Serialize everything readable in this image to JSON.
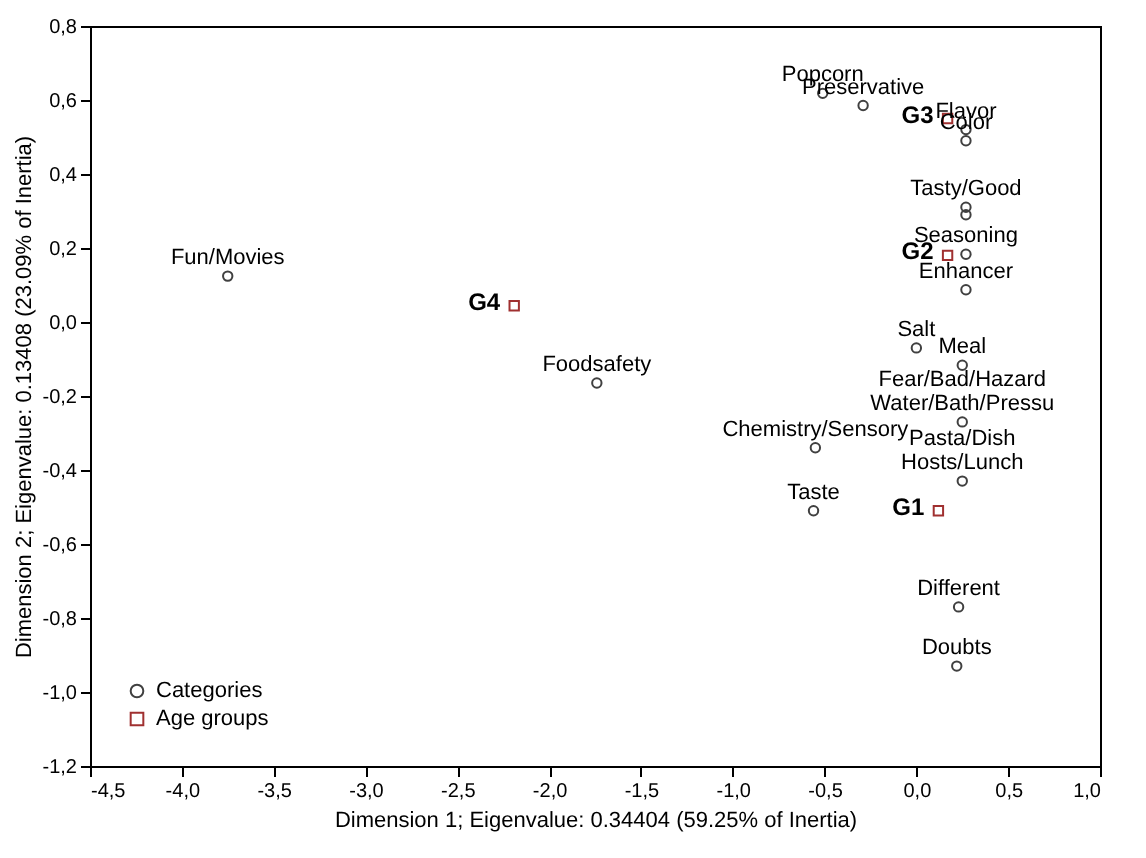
{
  "chart_data": {
    "type": "scatter",
    "xlabel": "Dimension 1; Eigenvalue: 0.34404 (59.25% of Inertia)",
    "ylabel": "Dimension 2; Eigenvalue: 0.13408 (23.09% of Inertia)",
    "xlim": [
      -4.5,
      1.0
    ],
    "ylim": [
      -1.2,
      0.8
    ],
    "xticks": [
      {
        "value": -4.5,
        "label": "-4,5"
      },
      {
        "value": -4.0,
        "label": "-4,0"
      },
      {
        "value": -3.5,
        "label": "-3,5"
      },
      {
        "value": -3.0,
        "label": "-3,0"
      },
      {
        "value": -2.5,
        "label": "-2,5"
      },
      {
        "value": -2.0,
        "label": "-2,0"
      },
      {
        "value": -1.5,
        "label": "-1,5"
      },
      {
        "value": -1.0,
        "label": "-1,0"
      },
      {
        "value": -0.5,
        "label": "-0,5"
      },
      {
        "value": 0.0,
        "label": "0,0"
      },
      {
        "value": 0.5,
        "label": "0,5"
      },
      {
        "value": 1.0,
        "label": "1,0"
      }
    ],
    "yticks": [
      {
        "value": -1.2,
        "label": "-1,2"
      },
      {
        "value": -1.0,
        "label": "-1,0"
      },
      {
        "value": -0.8,
        "label": "-0,8"
      },
      {
        "value": -0.6,
        "label": "-0,6"
      },
      {
        "value": -0.4,
        "label": "-0,4"
      },
      {
        "value": -0.2,
        "label": "-0,2"
      },
      {
        "value": 0.0,
        "label": "0,0"
      },
      {
        "value": 0.2,
        "label": "0,2"
      },
      {
        "value": 0.4,
        "label": "0,4"
      },
      {
        "value": 0.6,
        "label": "0,6"
      },
      {
        "value": 0.8,
        "label": "0,8"
      }
    ],
    "series": [
      {
        "name": "Categories",
        "color": "#404040",
        "marker": "circle",
        "x": [
          -3.75,
          -1.74,
          -0.55,
          -0.56,
          0.23,
          0.22,
          0.25,
          0.25,
          0.25,
          0.0,
          0.27,
          0.27,
          -0.51,
          -0.29,
          0.27,
          0.27,
          0.27,
          0.27
        ],
        "values": [
          0.124,
          -0.165,
          -0.34,
          -0.51,
          -0.77,
          -0.93,
          -0.27,
          -0.117,
          -0.43,
          -0.07,
          0.087,
          0.183,
          0.618,
          0.585,
          0.52,
          0.49,
          0.31,
          0.29
        ]
      },
      {
        "name": "Age groups",
        "color": "#a03030",
        "marker": "square",
        "x": [
          0.12,
          0.17,
          0.17,
          -2.19
        ],
        "values": [
          -0.51,
          0.18,
          0.55,
          0.044
        ]
      }
    ],
    "annotations": [
      {
        "text": "Fun/Movies",
        "x": -3.75,
        "y": 0.124
      },
      {
        "text": "Foodsafety",
        "x": -1.74,
        "y": -0.165
      },
      {
        "text": "Chemistry/Sensory",
        "x": -0.55,
        "y": -0.34
      },
      {
        "text": "Taste",
        "x": -0.56,
        "y": -0.51
      },
      {
        "text": "Different",
        "x": 0.23,
        "y": -0.77
      },
      {
        "text": "Doubts",
        "x": 0.22,
        "y": -0.93
      },
      {
        "text": "Water/Bath/Pressu",
        "x": 0.25,
        "y": -0.27
      },
      {
        "text": "Fear/Bad/Hazard",
        "x": 0.25,
        "y": -0.27
      },
      {
        "text": "Meal",
        "x": 0.25,
        "y": -0.117
      },
      {
        "text": "Hosts/Lunch",
        "x": 0.25,
        "y": -0.43
      },
      {
        "text": "Pasta/Dish",
        "x": 0.25,
        "y": -0.43
      },
      {
        "text": "Salt",
        "x": 0.0,
        "y": -0.07
      },
      {
        "text": "Enhancer",
        "x": 0.27,
        "y": 0.087
      },
      {
        "text": "Seasoning",
        "x": 0.27,
        "y": 0.183
      },
      {
        "text": "Popcorn",
        "x": -0.51,
        "y": 0.618
      },
      {
        "text": "Preservative",
        "x": -0.29,
        "y": 0.585
      },
      {
        "text": "Flavor",
        "x": 0.27,
        "y": 0.52
      },
      {
        "text": "Color",
        "x": 0.27,
        "y": 0.49
      },
      {
        "text": "Tasty/Good",
        "x": 0.27,
        "y": 0.31
      },
      {
        "text": "G1",
        "x": 0.12,
        "y": -0.51
      },
      {
        "text": "G2",
        "x": 0.17,
        "y": 0.18
      },
      {
        "text": "G3",
        "x": 0.17,
        "y": 0.55
      },
      {
        "text": "G4",
        "x": -2.19,
        "y": 0.044
      }
    ],
    "legend": "bottom left",
    "grid": false
  }
}
